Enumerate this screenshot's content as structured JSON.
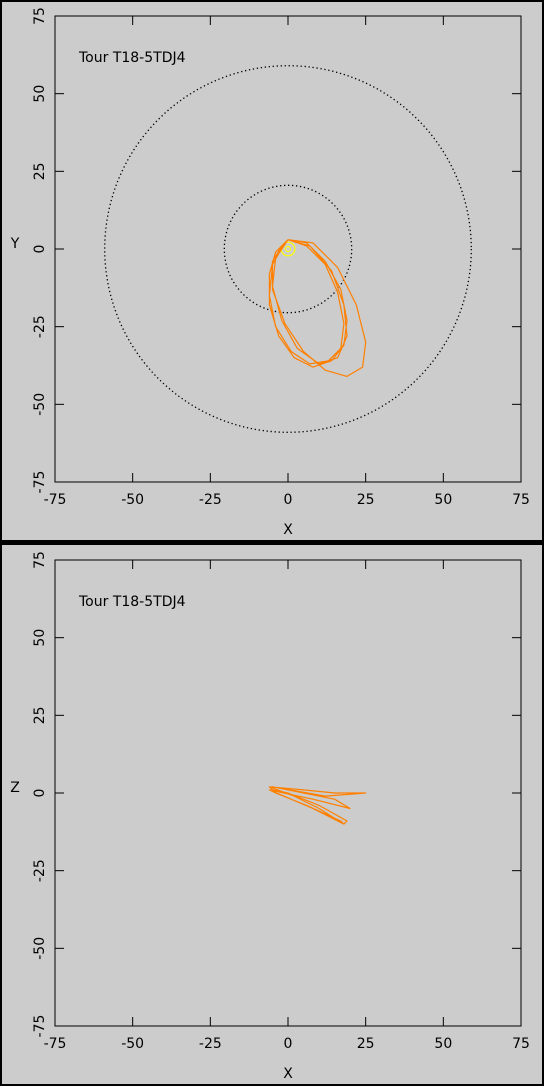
{
  "chart_data": [
    {
      "type": "line",
      "title": "Tour T18-5TDJ4",
      "xlabel": "X",
      "ylabel": "Y",
      "xlim": [
        -75,
        75
      ],
      "ylim": [
        -75,
        75
      ],
      "xticks": [
        -75,
        -50,
        -25,
        0,
        25,
        50,
        75
      ],
      "yticks": [
        -75,
        -50,
        -25,
        0,
        25,
        50,
        75
      ],
      "circles": [
        {
          "r": 20.5,
          "color": "#000000",
          "style": "dotted"
        },
        {
          "r": 59,
          "color": "#000000",
          "style": "dotted"
        },
        {
          "r": 2.2,
          "color": "#ffff00",
          "style": "solid"
        },
        {
          "r": 0.8,
          "color": "#ffff00",
          "style": "solid"
        }
      ],
      "series": [
        {
          "color": "#ff8000",
          "x": [
            0,
            6,
            12,
            17,
            19,
            18,
            14,
            8,
            2,
            -3,
            -6,
            -6,
            -4,
            0,
            8,
            16,
            22,
            25,
            24,
            19,
            12,
            5,
            -1,
            -5,
            -5,
            -2,
            0,
            7,
            14,
            18,
            19,
            16,
            10,
            3,
            -2,
            -5,
            -4,
            0,
            6,
            12,
            16,
            18,
            17,
            13,
            7,
            1,
            -4,
            -6,
            -5,
            -1
          ],
          "y": [
            3,
            2,
            -4,
            -13,
            -23,
            -31,
            -36,
            -38,
            -35,
            -28,
            -18,
            -8,
            -1,
            3,
            2,
            -6,
            -18,
            -30,
            -38,
            -41,
            -39,
            -33,
            -24,
            -13,
            -4,
            1,
            3,
            1,
            -7,
            -18,
            -28,
            -35,
            -37,
            -32,
            -23,
            -12,
            -3,
            3,
            1,
            -5,
            -14,
            -24,
            -32,
            -36,
            -37,
            -33,
            -25,
            -15,
            -5,
            2
          ]
        }
      ]
    },
    {
      "type": "line",
      "title": "Tour T18-5TDJ4",
      "xlabel": "X",
      "ylabel": "Z",
      "xlim": [
        -75,
        75
      ],
      "ylim": [
        -75,
        75
      ],
      "xticks": [
        -75,
        -50,
        -25,
        0,
        25,
        50,
        75
      ],
      "yticks": [
        -75,
        -50,
        -25,
        0,
        25,
        50,
        75
      ],
      "circles": [],
      "series": [
        {
          "color": "#ff8000",
          "x": [
            -6,
            2,
            10,
            18,
            19,
            10,
            0,
            -5,
            -6,
            5,
            15,
            25,
            12,
            -5,
            15,
            20,
            8,
            -6,
            -4,
            6,
            17,
            18,
            8,
            -6
          ],
          "y": [
            2,
            -1,
            -5,
            -10,
            -9,
            -4,
            0,
            1,
            2,
            1,
            0,
            0,
            -1,
            2,
            -2,
            -5,
            -2,
            1,
            0,
            -4,
            -9,
            -10,
            -5,
            1
          ]
        }
      ]
    }
  ]
}
